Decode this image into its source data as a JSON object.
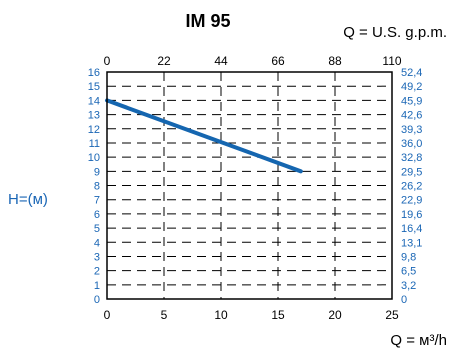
{
  "chart_data": {
    "type": "line",
    "title": "IM 95",
    "top_axis_label": "Q = U.S. g.p.m.",
    "bottom_axis_label": "Q = м³/h",
    "left_axis_label": "H=(м)",
    "x_ticks": [
      "0",
      "5",
      "10",
      "15",
      "20",
      "25"
    ],
    "top_ticks": [
      "0",
      "22",
      "44",
      "66",
      "88",
      "110"
    ],
    "y_ticks": [
      "0",
      "1",
      "2",
      "3",
      "4",
      "5",
      "6",
      "7",
      "8",
      "9",
      "10",
      "11",
      "12",
      "13",
      "14",
      "15",
      "16"
    ],
    "y_right_ticks": [
      "0",
      "3,2",
      "6,5",
      "9,8",
      "13,1",
      "16,4",
      "19,6",
      "22,9",
      "26,2",
      "29,5",
      "32,8",
      "36,0",
      "39,3",
      "42,6",
      "45,9",
      "49,2",
      "52,4"
    ],
    "xlim": [
      0,
      25
    ],
    "ylim": [
      0,
      16
    ],
    "grid": true,
    "series": [
      {
        "x": [
          0,
          17
        ],
        "y": [
          14,
          9
        ],
        "color": "#1566b0"
      }
    ],
    "colors": {
      "axis_text": "#1a66b5",
      "series": "#1566b0",
      "frame": "#000000"
    }
  }
}
